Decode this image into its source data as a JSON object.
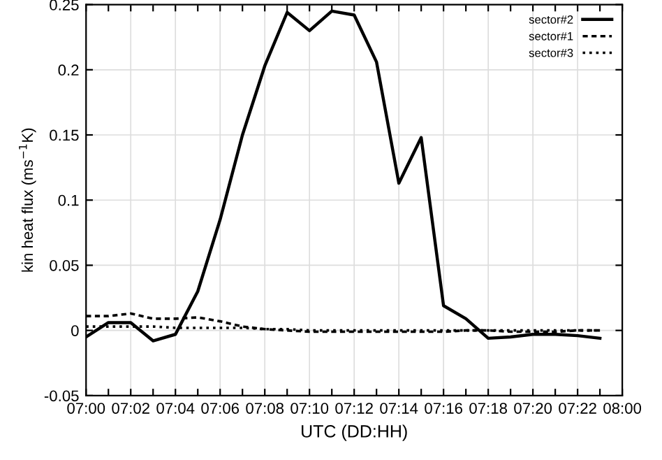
{
  "chart_data": {
    "type": "line",
    "xlabel": "UTC (DD:HH)",
    "ylabel": "kin heat flux (ms$^{−1}$K)",
    "categories": [
      "07:00",
      null,
      "07:02",
      null,
      "07:04",
      null,
      "07:06",
      null,
      "07:08",
      null,
      "07:10",
      null,
      "07:12",
      null,
      "07:14",
      null,
      "07:16",
      null,
      "07:18",
      null,
      "07:20",
      null,
      "07:22",
      null,
      "08:00"
    ],
    "series": [
      {
        "name": "sector#2",
        "color": "#000000",
        "line_style": "solid",
        "values": [
          -0.005,
          0.006,
          0.006,
          -0.008,
          -0.003,
          0.03,
          0.085,
          0.15,
          0.203,
          0.244,
          0.23,
          0.245,
          0.242,
          0.206,
          0.113,
          0.148,
          0.019,
          0.009,
          -0.006,
          -0.005,
          -0.003,
          -0.003,
          -0.004,
          -0.006,
          null
        ]
      },
      {
        "name": "sector#1",
        "color": "#000000",
        "line_style": "dashed",
        "values": [
          0.011,
          0.011,
          0.013,
          0.009,
          0.009,
          0.01,
          0.007,
          0.003,
          0.001,
          0.0,
          -0.001,
          -0.001,
          -0.001,
          -0.001,
          -0.001,
          -0.001,
          -0.001,
          0.0,
          0.0,
          -0.001,
          -0.001,
          -0.001,
          0.0,
          0.0,
          null
        ]
      },
      {
        "name": "sector#3",
        "color": "#000000",
        "line_style": "dotted",
        "values": [
          0.003,
          0.003,
          0.003,
          0.003,
          0.002,
          0.002,
          0.002,
          0.002,
          0.001,
          0.001,
          0.0,
          0.0,
          0.0,
          0.0,
          0.0,
          0.0,
          0.0,
          0.0,
          0.0,
          0.0,
          0.0,
          0.0,
          0.0,
          0.0,
          null
        ]
      }
    ],
    "ylim": [
      -0.05,
      0.25
    ],
    "yticks": [
      -0.05,
      0,
      0.05,
      0.1,
      0.15,
      0.2,
      0.25
    ],
    "grid": true,
    "legend": "top right",
    "marker": "none"
  }
}
